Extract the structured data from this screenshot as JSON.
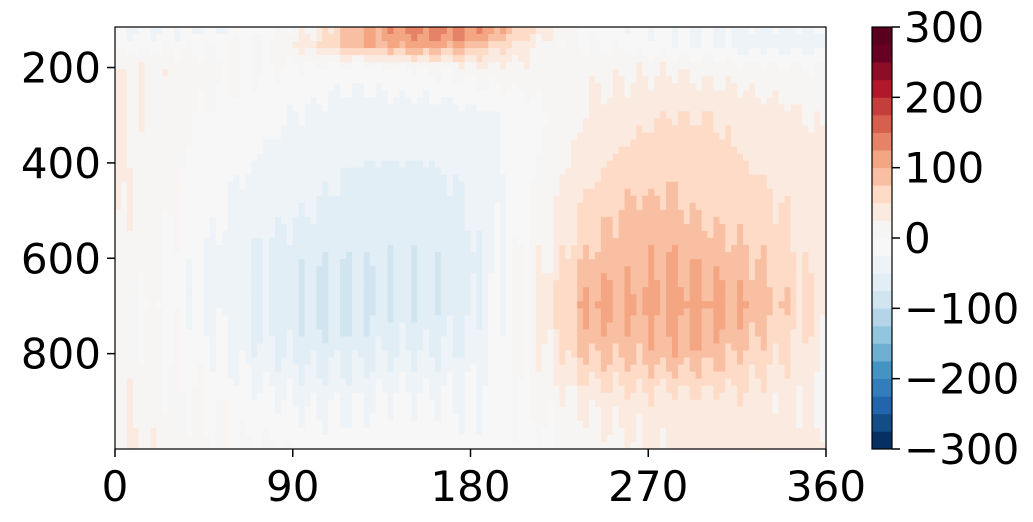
{
  "chart_data": {
    "type": "heatmap",
    "title": "",
    "xlabel": "",
    "ylabel": "",
    "xlim": [
      0,
      360
    ],
    "ylim": [
      1000,
      115
    ],
    "x_ticks": [
      0,
      90,
      180,
      270,
      360
    ],
    "x_tick_labels": [
      "0",
      "90",
      "180",
      "270",
      "360"
    ],
    "y_ticks": [
      200,
      400,
      600,
      800
    ],
    "y_tick_labels": [
      "200",
      "400",
      "600",
      "800"
    ],
    "y_axis_inverted": true,
    "grid": false,
    "colormap": "RdBu_r",
    "colorbar": {
      "range": [
        -300,
        300
      ],
      "ticks": [
        300,
        200,
        100,
        0,
        -100,
        -200,
        -300
      ],
      "tick_labels": [
        "300",
        "200",
        "100",
        "0",
        "−100",
        "−200",
        "−300"
      ],
      "levels": 24,
      "colors": [
        "#053061",
        "#134c87",
        "#2166ac",
        "#327dbb",
        "#4393c3",
        "#6eaed1",
        "#92c5de",
        "#b3d5e7",
        "#d1e5f0",
        "#e2eef5",
        "#eef3f7",
        "#f7f7f7",
        "#f7f5f3",
        "#fbeae0",
        "#fddbc7",
        "#f8bfa3",
        "#f4a582",
        "#e58267",
        "#d6604d",
        "#c43e3c",
        "#b2182b",
        "#8e0d26",
        "#670022",
        "#5a001e"
      ]
    },
    "value_grid": {
      "x": [
        0,
        20,
        40,
        60,
        80,
        100,
        120,
        140,
        160,
        180,
        200,
        220,
        240,
        260,
        280,
        300,
        320,
        340,
        360
      ],
      "y": [
        115,
        150,
        200,
        300,
        400,
        500,
        600,
        700,
        800,
        900,
        1000
      ],
      "z": [
        [
          -30,
          -30,
          -30,
          -20,
          -10,
          20,
          80,
          120,
          140,
          140,
          100,
          30,
          -10,
          -20,
          -20,
          -30,
          -30,
          -30,
          -30
        ],
        [
          -15,
          -10,
          -5,
          0,
          10,
          40,
          90,
          110,
          120,
          100,
          50,
          10,
          0,
          -10,
          -20,
          -30,
          -40,
          -40,
          -40
        ],
        [
          20,
          20,
          15,
          5,
          0,
          -5,
          -10,
          -5,
          5,
          15,
          20,
          15,
          15,
          20,
          20,
          15,
          10,
          5,
          0
        ],
        [
          30,
          20,
          0,
          -10,
          -20,
          -30,
          -40,
          -40,
          -40,
          -35,
          -20,
          0,
          30,
          40,
          50,
          50,
          40,
          30,
          20
        ],
        [
          30,
          15,
          -5,
          -20,
          -30,
          -40,
          -50,
          -50,
          -50,
          -45,
          -20,
          10,
          40,
          60,
          70,
          60,
          50,
          40,
          30
        ],
        [
          30,
          10,
          -10,
          -30,
          -40,
          -50,
          -60,
          -60,
          -60,
          -50,
          -15,
          20,
          60,
          80,
          80,
          70,
          60,
          50,
          30
        ],
        [
          20,
          5,
          -20,
          -40,
          -60,
          -70,
          -70,
          -70,
          -70,
          -60,
          -10,
          30,
          80,
          90,
          100,
          90,
          80,
          60,
          30
        ],
        [
          20,
          0,
          -20,
          -40,
          -60,
          -80,
          -80,
          -70,
          -70,
          -60,
          -10,
          40,
          110,
          100,
          110,
          110,
          100,
          70,
          30
        ],
        [
          20,
          5,
          -10,
          -30,
          -50,
          -60,
          -60,
          -50,
          -50,
          -40,
          -5,
          30,
          80,
          80,
          90,
          90,
          70,
          50,
          30
        ],
        [
          20,
          10,
          0,
          -10,
          -20,
          -30,
          -30,
          -20,
          -20,
          -20,
          -10,
          10,
          30,
          40,
          40,
          40,
          40,
          30,
          30
        ],
        [
          30,
          20,
          10,
          0,
          0,
          -10,
          -10,
          -10,
          -10,
          -20,
          -10,
          0,
          10,
          20,
          30,
          40,
          40,
          40,
          30
        ]
      ]
    }
  }
}
